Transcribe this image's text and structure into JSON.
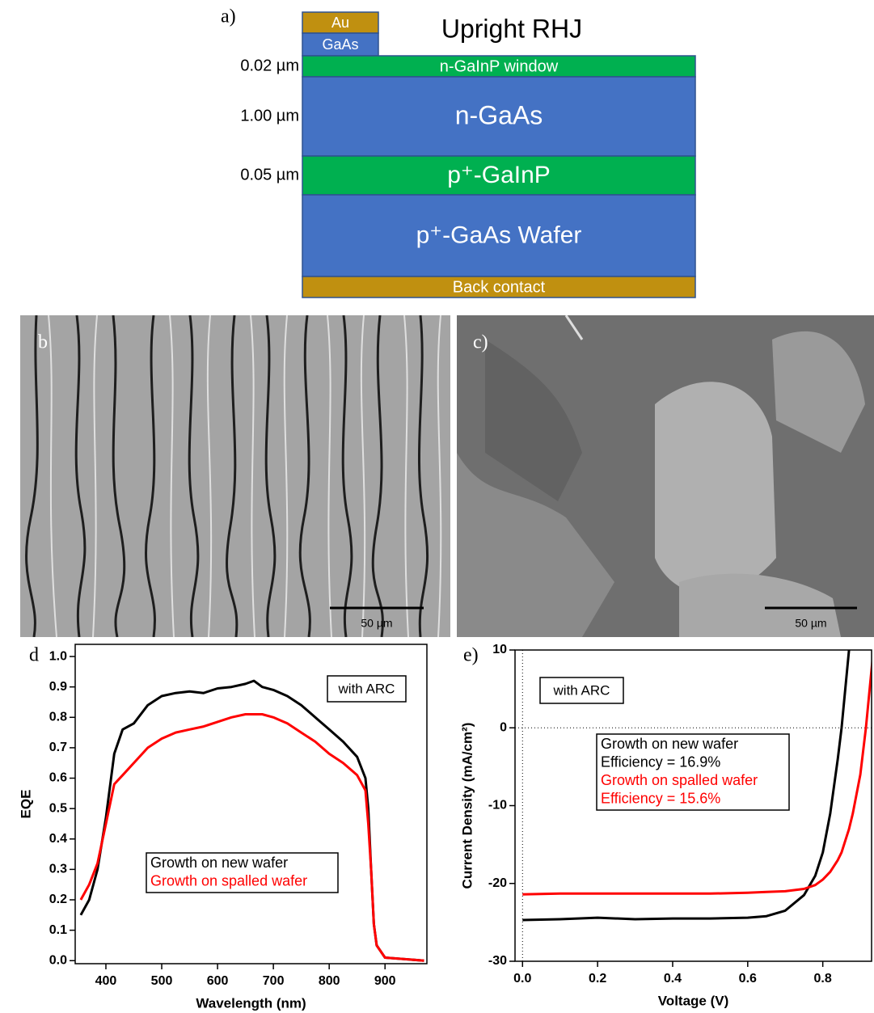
{
  "diagram": {
    "panel_label": "a)",
    "title": "Upright RHJ",
    "layers": [
      {
        "label": "Au"
      },
      {
        "label": "GaAs"
      },
      {
        "label": "n-GaInP window",
        "thickness": "0.02 µm"
      },
      {
        "label": "n-GaAs",
        "thickness": "1.00 µm"
      },
      {
        "label": "p⁺-GaInP",
        "thickness": "0.05 µm"
      },
      {
        "label": "p⁺-GaAs Wafer"
      },
      {
        "label": "Back contact"
      }
    ]
  },
  "images": [
    {
      "panel_label": "b",
      "scale_bar": "50 µm"
    },
    {
      "panel_label": "c)",
      "scale_bar": "50 µm"
    }
  ],
  "chart_data": [
    {
      "type": "line",
      "panel_label": "d",
      "x_label": "Wavelength (nm)",
      "y_label": "EQE",
      "annotation": "with ARC",
      "x": [
        355,
        370,
        385,
        400,
        415,
        430,
        450,
        475,
        500,
        525,
        550,
        575,
        600,
        625,
        650,
        665,
        680,
        700,
        725,
        750,
        775,
        800,
        825,
        850,
        865,
        870,
        875,
        880,
        885,
        900,
        970
      ],
      "series": [
        {
          "name": "Growth on new wafer",
          "color": "#000000",
          "values": [
            0.15,
            0.2,
            0.3,
            0.47,
            0.68,
            0.76,
            0.78,
            0.84,
            0.87,
            0.88,
            0.885,
            0.88,
            0.895,
            0.9,
            0.91,
            0.92,
            0.9,
            0.89,
            0.87,
            0.84,
            0.8,
            0.76,
            0.72,
            0.67,
            0.6,
            0.5,
            0.3,
            0.12,
            0.05,
            0.01,
            0
          ]
        },
        {
          "name": "Growth on spalled wafer",
          "color": "#ff0000",
          "values": [
            0.2,
            0.25,
            0.32,
            0.45,
            0.58,
            0.61,
            0.65,
            0.7,
            0.73,
            0.75,
            0.76,
            0.77,
            0.785,
            0.8,
            0.81,
            0.81,
            0.81,
            0.8,
            0.78,
            0.75,
            0.72,
            0.68,
            0.65,
            0.61,
            0.56,
            0.45,
            0.3,
            0.12,
            0.05,
            0.01,
            0
          ]
        }
      ],
      "xlim": [
        345,
        975
      ],
      "ylim": [
        -0.01,
        1.04
      ],
      "xticks": [
        400,
        500,
        600,
        700,
        800,
        900
      ],
      "yticks": [
        {
          "value": 0,
          "label": "0.0"
        },
        {
          "value": 0.1,
          "label": "0.1"
        },
        {
          "value": 0.2,
          "label": "0.2"
        },
        {
          "value": 0.3,
          "label": "0.3"
        },
        {
          "value": 0.4,
          "label": "0.4"
        },
        {
          "value": 0.5,
          "label": "0.5"
        },
        {
          "value": 0.6,
          "label": "0.6"
        },
        {
          "value": 0.7,
          "label": "0.7"
        },
        {
          "value": 0.8,
          "label": "0.8"
        },
        {
          "value": 0.9,
          "label": "0.9"
        },
        {
          "value": 1,
          "label": "1.0"
        }
      ]
    },
    {
      "type": "line",
      "panel_label": "e)",
      "x_label": "Voltage (V)",
      "y_label": "Current Density (mA/cm²)",
      "annotation": "with ARC",
      "zero_lines": true,
      "x": [
        0,
        0.1,
        0.2,
        0.3,
        0.4,
        0.5,
        0.6,
        0.65,
        0.7,
        0.75,
        0.78,
        0.8,
        0.82,
        0.84,
        0.85,
        0.86,
        0.87,
        0.88,
        0.9,
        0.915,
        0.935
      ],
      "series": [
        {
          "name": "Growth on new wafer",
          "color": "#000000",
          "efficiency": "Efficiency = 16.9%",
          "values": [
            -24.7,
            -24.6,
            -24.4,
            -24.6,
            -24.5,
            -24.5,
            -24.4,
            -24.2,
            -23.5,
            -21.5,
            -19,
            -16,
            -11,
            -4,
            0,
            5,
            10,
            null,
            null,
            null,
            null
          ]
        },
        {
          "name": "Growth on spalled wafer",
          "color": "#ff0000",
          "efficiency": "Efficiency = 15.6%",
          "values": [
            -21.4,
            -21.3,
            -21.3,
            -21.3,
            -21.3,
            -21.3,
            -21.2,
            -21.1,
            -21,
            -20.7,
            -20.2,
            -19.5,
            -18.5,
            -17,
            -16,
            -14.5,
            -13,
            -11,
            -6,
            0,
            10
          ]
        }
      ],
      "xlim": [
        -0.02,
        0.93
      ],
      "ylim": [
        -30,
        10
      ],
      "xticks": [
        {
          "value": 0,
          "label": "0.0"
        },
        {
          "value": 0.2,
          "label": "0.2"
        },
        {
          "value": 0.4,
          "label": "0.4"
        },
        {
          "value": 0.6,
          "label": "0.6"
        },
        {
          "value": 0.8,
          "label": "0.8"
        }
      ],
      "yticks": [
        -30,
        -20,
        -10,
        0,
        10
      ]
    }
  ]
}
